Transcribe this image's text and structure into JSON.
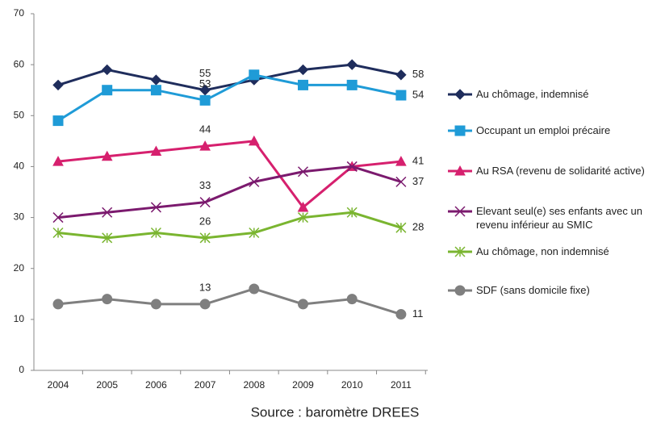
{
  "chart_data": {
    "type": "line",
    "x": [
      "2004",
      "2005",
      "2006",
      "2007",
      "2008",
      "2009",
      "2010",
      "2011"
    ],
    "ylim": [
      0,
      70
    ],
    "yticks": [
      0,
      10,
      20,
      30,
      40,
      50,
      60,
      70
    ],
    "series": [
      {
        "name": "Au chômage, indemnisé",
        "color": "#1f2d5c",
        "marker": "diamond",
        "values": [
          56,
          59,
          57,
          55,
          57,
          59,
          60,
          58
        ]
      },
      {
        "name": "Occupant un emploi précaire",
        "color": "#1f9bd7",
        "marker": "square",
        "values": [
          49,
          55,
          55,
          53,
          58,
          56,
          56,
          54
        ]
      },
      {
        "name": "Au RSA (revenu de solidarité active)",
        "color": "#d6206e",
        "marker": "triangle",
        "values": [
          41,
          42,
          43,
          44,
          45,
          32,
          40,
          41
        ]
      },
      {
        "name": "Elevant seul(e) ses enfants avec un revenu inférieur au SMIC",
        "color": "#7b1a6e",
        "marker": "x",
        "values": [
          30,
          31,
          32,
          33,
          37,
          39,
          40,
          37
        ]
      },
      {
        "name": "Au chômage, non indemnisé",
        "color": "#7ab530",
        "marker": "star",
        "values": [
          27,
          26,
          27,
          26,
          27,
          30,
          31,
          28
        ]
      },
      {
        "name": "SDF (sans domicile fixe)",
        "color": "#7f7f7f",
        "marker": "circle",
        "values": [
          13,
          14,
          13,
          13,
          16,
          13,
          14,
          11
        ]
      }
    ],
    "source": "Source : baromètre DREES"
  }
}
